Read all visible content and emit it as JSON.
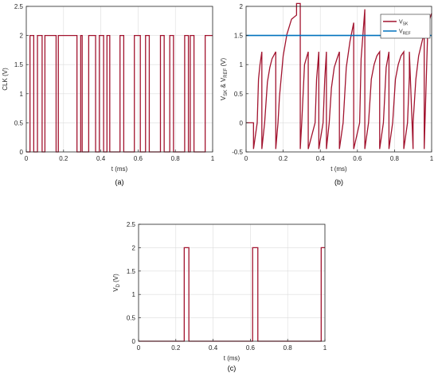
{
  "colors": {
    "signal": "#A2142F",
    "reference": "#0072BD",
    "grid": "#dcdcdc",
    "axis": "#262626"
  },
  "chart_data": [
    {
      "type": "line",
      "caption": "(a)",
      "xlabel": "t (ms)",
      "ylabel": "CLK (V)",
      "xlim": [
        0,
        1
      ],
      "ylim": [
        0,
        2.5
      ],
      "xticks": [
        0,
        0.2,
        0.4,
        0.6,
        0.8,
        1
      ],
      "yticks": [
        0,
        0.5,
        1,
        1.5,
        2,
        2.5
      ],
      "grid": true,
      "legend": false,
      "series": [
        {
          "color": "#A2142F",
          "x": [
            0,
            0.02,
            0.02,
            0.04,
            0.04,
            0.06,
            0.06,
            0.085,
            0.085,
            0.1,
            0.1,
            0.16,
            0.16,
            0.172,
            0.172,
            0.272,
            0.272,
            0.292,
            0.292,
            0.3,
            0.3,
            0.335,
            0.335,
            0.372,
            0.372,
            0.392,
            0.392,
            0.415,
            0.415,
            0.433,
            0.433,
            0.448,
            0.448,
            0.503,
            0.503,
            0.523,
            0.523,
            0.58,
            0.58,
            0.612,
            0.612,
            0.64,
            0.64,
            0.66,
            0.66,
            0.72,
            0.72,
            0.74,
            0.74,
            0.77,
            0.77,
            0.79,
            0.79,
            0.85,
            0.85,
            0.87,
            0.87,
            0.88,
            0.88,
            0.9,
            0.9,
            0.96,
            0.96,
            1
          ],
          "y": [
            0,
            0,
            2,
            2,
            0,
            0,
            2,
            2,
            0,
            0,
            2,
            2,
            0,
            0,
            2,
            2,
            0,
            0,
            2,
            2,
            0,
            0,
            2,
            2,
            0,
            0,
            2,
            2,
            0,
            0,
            2,
            2,
            0,
            0,
            2,
            2,
            0,
            0,
            2,
            2,
            0,
            0,
            2,
            2,
            0,
            0,
            2,
            2,
            0,
            0,
            2,
            2,
            0,
            0,
            2,
            2,
            0,
            0,
            2,
            2,
            0,
            0,
            2,
            2
          ]
        }
      ]
    },
    {
      "type": "line",
      "caption": "(b)",
      "xlabel": "t (ms)",
      "ylabel": "V",
      "ylabel_sub1": "SK",
      "ylabel_mid": " & V",
      "ylabel_sub2": "REF",
      "ylabel_tail": " (V)",
      "xlim": [
        0,
        1
      ],
      "ylim": [
        -0.5,
        2
      ],
      "xticks": [
        0,
        0.2,
        0.4,
        0.6,
        0.8,
        1
      ],
      "yticks": [
        -0.5,
        0,
        0.5,
        1,
        1.5,
        2
      ],
      "grid": true,
      "legend": "top-right",
      "series": [
        {
          "name": "V",
          "name_sub": "SK",
          "color": "#A2142F",
          "x": [
            0,
            0.02,
            0.02,
            0.04,
            0.04,
            0.06,
            0.06,
            0.067,
            0.075,
            0.085,
            0.085,
            0.1,
            0.1,
            0.115,
            0.128,
            0.14,
            0.16,
            0.16,
            0.172,
            0.172,
            0.18,
            0.2,
            0.22,
            0.245,
            0.272,
            0.272,
            0.292,
            0.292,
            0.3,
            0.3,
            0.315,
            0.335,
            0.335,
            0.372,
            0.372,
            0.38,
            0.392,
            0.392,
            0.415,
            0.415,
            0.424,
            0.433,
            0.433,
            0.448,
            0.448,
            0.46,
            0.475,
            0.49,
            0.503,
            0.503,
            0.523,
            0.523,
            0.54,
            0.56,
            0.58,
            0.58,
            0.612,
            0.612,
            0.62,
            0.64,
            0.64,
            0.66,
            0.66,
            0.675,
            0.69,
            0.705,
            0.72,
            0.72,
            0.74,
            0.74,
            0.755,
            0.77,
            0.77,
            0.79,
            0.79,
            0.805,
            0.82,
            0.835,
            0.85,
            0.85,
            0.87,
            0.87,
            0.88,
            0.88,
            0.9,
            0.9,
            0.915,
            0.93,
            0.945,
            0.96,
            0.96,
            0.98,
            1
          ],
          "y": [
            0,
            0,
            0,
            0,
            -0.45,
            0,
            0,
            0.75,
            1.0,
            1.22,
            -0.45,
            0,
            0,
            0.7,
            0.95,
            1.1,
            1.22,
            -0.45,
            0,
            0,
            0.45,
            1.15,
            1.52,
            1.78,
            1.85,
            2.05,
            2.05,
            -0.45,
            0,
            0,
            1.0,
            1.22,
            -0.45,
            0,
            0,
            0.75,
            1.22,
            -0.45,
            0,
            0,
            0.75,
            1.22,
            -0.45,
            0,
            0,
            0.6,
            0.95,
            1.1,
            1.22,
            -0.45,
            0,
            0,
            0.95,
            1.4,
            1.72,
            -0.45,
            0,
            0,
            1.1,
            1.95,
            -0.45,
            0,
            0,
            0.75,
            1.0,
            1.15,
            1.22,
            -0.45,
            0,
            0,
            0.95,
            1.22,
            -0.45,
            0,
            0,
            0.75,
            1.0,
            1.15,
            1.22,
            -0.45,
            0,
            0,
            0.8,
            1.22,
            -0.45,
            0,
            0.75,
            1.15,
            1.35,
            1.55,
            -0.45,
            1.7,
            1.88
          ]
        },
        {
          "name": "V",
          "name_sub": "REF",
          "color": "#0072BD",
          "x": [
            0,
            1
          ],
          "y": [
            1.5,
            1.5
          ]
        }
      ]
    },
    {
      "type": "line",
      "caption": "(c)",
      "xlabel": "t (ms)",
      "ylabel": "V",
      "ylabel_sub1": "D",
      "ylabel_tail": " (V)",
      "xlim": [
        0,
        1
      ],
      "ylim": [
        0,
        2.5
      ],
      "xticks": [
        0,
        0.2,
        0.4,
        0.6,
        0.8,
        1
      ],
      "yticks": [
        0,
        0.5,
        1,
        1.5,
        2,
        2.5
      ],
      "grid": true,
      "legend": false,
      "series": [
        {
          "color": "#A2142F",
          "x": [
            0,
            0.225,
            0.225,
            0.245,
            0.245,
            0.27,
            0.27,
            0.595,
            0.595,
            0.612,
            0.612,
            0.64,
            0.64,
            0.965,
            0.965,
            0.98,
            0.98,
            1
          ],
          "y": [
            0,
            0,
            0,
            0,
            2,
            2,
            0,
            0,
            0,
            0,
            2,
            2,
            0,
            0,
            0,
            0,
            2,
            2
          ]
        }
      ]
    }
  ]
}
